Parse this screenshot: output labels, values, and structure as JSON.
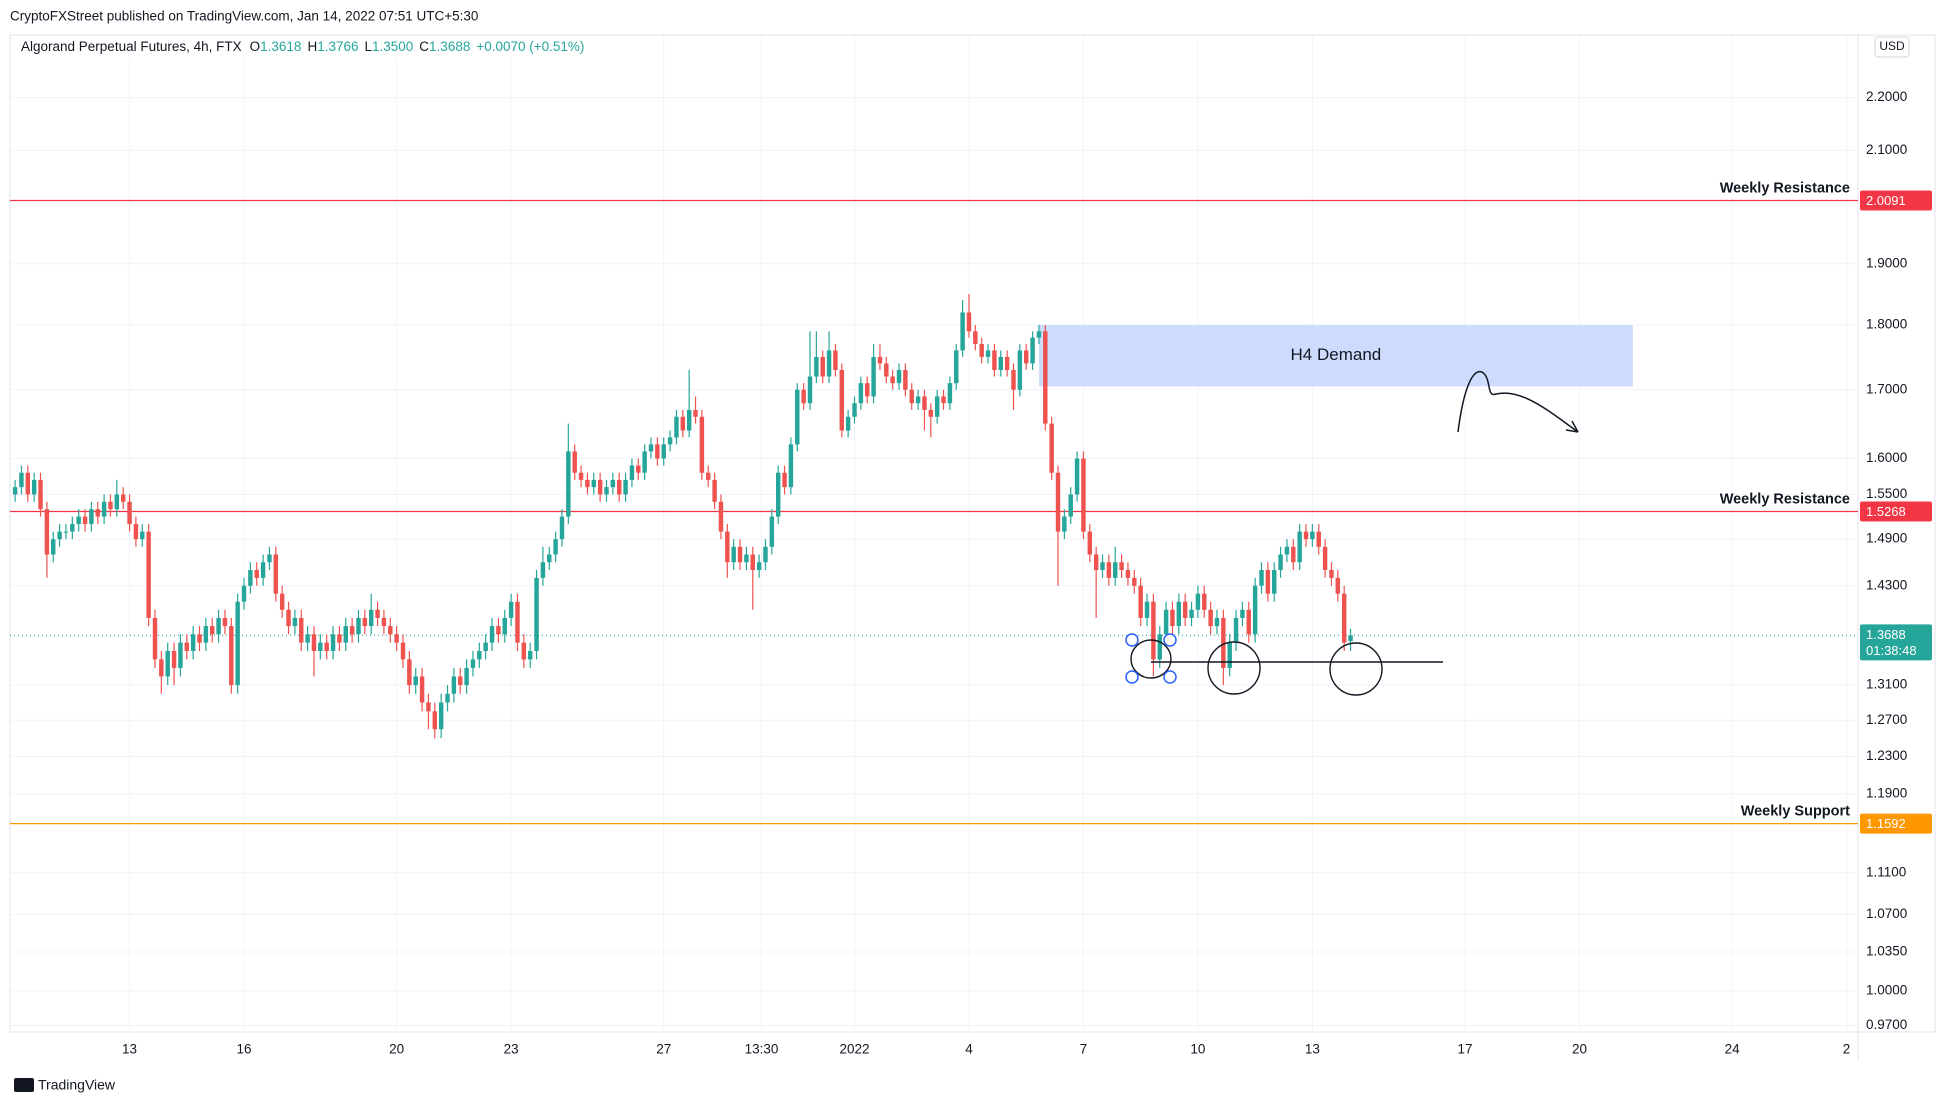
{
  "header": {
    "published": "CryptoFXStreet published on TradingView.com, Jan 14, 2022 07:51 UTC+5:30",
    "symbol": "Algorand Perpetual Futures, 4h, FTX",
    "ohlc_legend": [
      {
        "key": "O",
        "value": "1.3618"
      },
      {
        "key": "H",
        "value": "1.3766"
      },
      {
        "key": "L",
        "value": "1.3500"
      },
      {
        "key": "C",
        "value": "1.3688"
      }
    ],
    "change": "+0.0070 (+0.51%)",
    "currency": "USD"
  },
  "footer": {
    "brand": "TradingView"
  },
  "chart_data": {
    "type": "candlestick",
    "log_scale": true,
    "grid": true,
    "up_color": "#26a69a",
    "down_color": "#ef5350",
    "xlim": [
      -0.8,
      289.8
    ],
    "xticks": [
      {
        "value": 18,
        "label": "13"
      },
      {
        "value": 36,
        "label": "16"
      },
      {
        "value": 60,
        "label": "20"
      },
      {
        "value": 78,
        "label": "23"
      },
      {
        "value": 102,
        "label": "27"
      },
      {
        "value": 117.375,
        "label": "13:30"
      },
      {
        "value": 132,
        "label": "2022"
      },
      {
        "value": 150,
        "label": "4"
      },
      {
        "value": 168,
        "label": "7"
      },
      {
        "value": 186,
        "label": "10"
      },
      {
        "value": 204,
        "label": "13"
      },
      {
        "value": 228,
        "label": "17"
      },
      {
        "value": 246,
        "label": "20"
      },
      {
        "value": 270,
        "label": "24"
      },
      {
        "value": 288,
        "label": "2"
      }
    ],
    "ylim": [
      0.9645,
      2.325
    ],
    "yticks": [
      {
        "value": 2.2,
        "label": "2.2000"
      },
      {
        "value": 2.1,
        "label": "2.1000"
      },
      {
        "value": 1.9,
        "label": "1.9000"
      },
      {
        "value": 1.8,
        "label": "1.8000"
      },
      {
        "value": 1.7,
        "label": "1.7000"
      },
      {
        "value": 1.6,
        "label": "1.6000"
      },
      {
        "value": 1.55,
        "label": "1.5500"
      },
      {
        "value": 1.49,
        "label": "1.4900"
      },
      {
        "value": 1.43,
        "label": "1.4300"
      },
      {
        "value": 1.31,
        "label": "1.3100"
      },
      {
        "value": 1.27,
        "label": "1.2700"
      },
      {
        "value": 1.23,
        "label": "1.2300"
      },
      {
        "value": 1.19,
        "label": "1.1900"
      },
      {
        "value": 1.11,
        "label": "1.1100"
      },
      {
        "value": 1.07,
        "label": "1.0700"
      },
      {
        "value": 1.035,
        "label": "1.0350"
      },
      {
        "value": 1.0,
        "label": "1.0000"
      },
      {
        "value": 0.97,
        "label": "0.9700"
      }
    ],
    "levels": [
      {
        "name": "Weekly Resistance",
        "value": 2.0091,
        "color": "#f23645"
      },
      {
        "name": "Weekly Resistance",
        "value": 1.5268,
        "color": "#f23645"
      },
      {
        "name": "Weekly Support",
        "value": 1.1592,
        "color": "#ff9800"
      }
    ],
    "current_price": {
      "value": 1.3688,
      "countdown": "01:38:48",
      "color": "#26a69a"
    },
    "zones": [
      {
        "label": "H4 Demand",
        "top": 1.8,
        "bottom": 1.705,
        "x_start": 161,
        "x_end": 254.4,
        "color": "#cddcfd"
      }
    ],
    "ohlc": [
      [
        1.55,
        1.57,
        1.54,
        1.56
      ],
      [
        1.56,
        1.59,
        1.55,
        1.58
      ],
      [
        1.58,
        1.59,
        1.54,
        1.55
      ],
      [
        1.55,
        1.58,
        1.54,
        1.57
      ],
      [
        1.57,
        1.58,
        1.52,
        1.53
      ],
      [
        1.53,
        1.54,
        1.44,
        1.47
      ],
      [
        1.47,
        1.5,
        1.46,
        1.49
      ],
      [
        1.49,
        1.51,
        1.48,
        1.5
      ],
      [
        1.5,
        1.51,
        1.49,
        1.5
      ],
      [
        1.5,
        1.52,
        1.49,
        1.51
      ],
      [
        1.51,
        1.53,
        1.5,
        1.52
      ],
      [
        1.52,
        1.53,
        1.5,
        1.51
      ],
      [
        1.51,
        1.54,
        1.5,
        1.53
      ],
      [
        1.53,
        1.54,
        1.51,
        1.52
      ],
      [
        1.52,
        1.55,
        1.51,
        1.54
      ],
      [
        1.54,
        1.55,
        1.52,
        1.53
      ],
      [
        1.53,
        1.57,
        1.52,
        1.55
      ],
      [
        1.55,
        1.56,
        1.53,
        1.54
      ],
      [
        1.54,
        1.55,
        1.5,
        1.51
      ],
      [
        1.51,
        1.52,
        1.48,
        1.49
      ],
      [
        1.49,
        1.51,
        1.48,
        1.5
      ],
      [
        1.5,
        1.51,
        1.38,
        1.39
      ],
      [
        1.39,
        1.4,
        1.33,
        1.34
      ],
      [
        1.34,
        1.35,
        1.3,
        1.32
      ],
      [
        1.32,
        1.36,
        1.31,
        1.35
      ],
      [
        1.35,
        1.36,
        1.31,
        1.33
      ],
      [
        1.33,
        1.37,
        1.32,
        1.36
      ],
      [
        1.36,
        1.37,
        1.34,
        1.35
      ],
      [
        1.35,
        1.38,
        1.34,
        1.37
      ],
      [
        1.37,
        1.38,
        1.35,
        1.36
      ],
      [
        1.36,
        1.39,
        1.35,
        1.38
      ],
      [
        1.38,
        1.39,
        1.36,
        1.37
      ],
      [
        1.37,
        1.4,
        1.36,
        1.39
      ],
      [
        1.39,
        1.4,
        1.37,
        1.38
      ],
      [
        1.38,
        1.39,
        1.3,
        1.31
      ],
      [
        1.31,
        1.42,
        1.3,
        1.41
      ],
      [
        1.41,
        1.44,
        1.4,
        1.43
      ],
      [
        1.43,
        1.46,
        1.42,
        1.45
      ],
      [
        1.45,
        1.46,
        1.43,
        1.44
      ],
      [
        1.44,
        1.47,
        1.43,
        1.46
      ],
      [
        1.46,
        1.48,
        1.45,
        1.47
      ],
      [
        1.47,
        1.48,
        1.41,
        1.42
      ],
      [
        1.42,
        1.43,
        1.39,
        1.4
      ],
      [
        1.4,
        1.41,
        1.37,
        1.38
      ],
      [
        1.38,
        1.4,
        1.37,
        1.39
      ],
      [
        1.39,
        1.4,
        1.35,
        1.36
      ],
      [
        1.36,
        1.38,
        1.35,
        1.37
      ],
      [
        1.37,
        1.38,
        1.32,
        1.35
      ],
      [
        1.35,
        1.37,
        1.34,
        1.36
      ],
      [
        1.36,
        1.37,
        1.34,
        1.35
      ],
      [
        1.35,
        1.38,
        1.34,
        1.37
      ],
      [
        1.37,
        1.38,
        1.35,
        1.36
      ],
      [
        1.36,
        1.39,
        1.35,
        1.38
      ],
      [
        1.38,
        1.39,
        1.36,
        1.37
      ],
      [
        1.37,
        1.4,
        1.36,
        1.39
      ],
      [
        1.39,
        1.4,
        1.37,
        1.38
      ],
      [
        1.38,
        1.42,
        1.37,
        1.4
      ],
      [
        1.4,
        1.41,
        1.38,
        1.39
      ],
      [
        1.39,
        1.4,
        1.37,
        1.38
      ],
      [
        1.38,
        1.39,
        1.36,
        1.37
      ],
      [
        1.37,
        1.38,
        1.35,
        1.36
      ],
      [
        1.36,
        1.37,
        1.33,
        1.34
      ],
      [
        1.34,
        1.35,
        1.3,
        1.31
      ],
      [
        1.31,
        1.33,
        1.3,
        1.32
      ],
      [
        1.32,
        1.33,
        1.28,
        1.29
      ],
      [
        1.29,
        1.3,
        1.26,
        1.28
      ],
      [
        1.28,
        1.29,
        1.25,
        1.26
      ],
      [
        1.26,
        1.3,
        1.25,
        1.29
      ],
      [
        1.29,
        1.31,
        1.28,
        1.3
      ],
      [
        1.3,
        1.33,
        1.29,
        1.32
      ],
      [
        1.32,
        1.33,
        1.3,
        1.31
      ],
      [
        1.31,
        1.34,
        1.3,
        1.33
      ],
      [
        1.33,
        1.35,
        1.32,
        1.34
      ],
      [
        1.34,
        1.36,
        1.33,
        1.35
      ],
      [
        1.35,
        1.37,
        1.34,
        1.36
      ],
      [
        1.36,
        1.39,
        1.35,
        1.38
      ],
      [
        1.38,
        1.39,
        1.36,
        1.37
      ],
      [
        1.37,
        1.4,
        1.36,
        1.39
      ],
      [
        1.39,
        1.42,
        1.38,
        1.41
      ],
      [
        1.41,
        1.42,
        1.35,
        1.36
      ],
      [
        1.36,
        1.37,
        1.33,
        1.34
      ],
      [
        1.34,
        1.36,
        1.33,
        1.35
      ],
      [
        1.35,
        1.45,
        1.34,
        1.44
      ],
      [
        1.44,
        1.48,
        1.43,
        1.46
      ],
      [
        1.46,
        1.48,
        1.45,
        1.47
      ],
      [
        1.47,
        1.5,
        1.46,
        1.49
      ],
      [
        1.49,
        1.53,
        1.48,
        1.52
      ],
      [
        1.52,
        1.65,
        1.51,
        1.61
      ],
      [
        1.61,
        1.62,
        1.57,
        1.58
      ],
      [
        1.58,
        1.59,
        1.56,
        1.57
      ],
      [
        1.57,
        1.58,
        1.55,
        1.56
      ],
      [
        1.56,
        1.58,
        1.55,
        1.57
      ],
      [
        1.57,
        1.58,
        1.54,
        1.55
      ],
      [
        1.55,
        1.57,
        1.54,
        1.56
      ],
      [
        1.56,
        1.58,
        1.55,
        1.57
      ],
      [
        1.57,
        1.58,
        1.54,
        1.55
      ],
      [
        1.55,
        1.58,
        1.54,
        1.57
      ],
      [
        1.57,
        1.6,
        1.56,
        1.59
      ],
      [
        1.59,
        1.6,
        1.57,
        1.58
      ],
      [
        1.58,
        1.62,
        1.57,
        1.61
      ],
      [
        1.61,
        1.63,
        1.6,
        1.62
      ],
      [
        1.62,
        1.63,
        1.59,
        1.6
      ],
      [
        1.6,
        1.63,
        1.59,
        1.62
      ],
      [
        1.62,
        1.64,
        1.61,
        1.63
      ],
      [
        1.63,
        1.67,
        1.62,
        1.66
      ],
      [
        1.66,
        1.67,
        1.63,
        1.64
      ],
      [
        1.64,
        1.73,
        1.63,
        1.67
      ],
      [
        1.67,
        1.69,
        1.65,
        1.66
      ],
      [
        1.66,
        1.67,
        1.57,
        1.58
      ],
      [
        1.58,
        1.59,
        1.56,
        1.57
      ],
      [
        1.57,
        1.58,
        1.53,
        1.54
      ],
      [
        1.54,
        1.55,
        1.49,
        1.5
      ],
      [
        1.5,
        1.51,
        1.44,
        1.46
      ],
      [
        1.46,
        1.49,
        1.45,
        1.48
      ],
      [
        1.48,
        1.49,
        1.45,
        1.46
      ],
      [
        1.46,
        1.48,
        1.45,
        1.47
      ],
      [
        1.47,
        1.48,
        1.4,
        1.45
      ],
      [
        1.45,
        1.47,
        1.44,
        1.46
      ],
      [
        1.46,
        1.49,
        1.45,
        1.48
      ],
      [
        1.48,
        1.53,
        1.47,
        1.52
      ],
      [
        1.52,
        1.59,
        1.51,
        1.58
      ],
      [
        1.58,
        1.59,
        1.55,
        1.56
      ],
      [
        1.56,
        1.63,
        1.55,
        1.62
      ],
      [
        1.62,
        1.71,
        1.61,
        1.7
      ],
      [
        1.7,
        1.71,
        1.67,
        1.68
      ],
      [
        1.68,
        1.79,
        1.67,
        1.72
      ],
      [
        1.72,
        1.79,
        1.71,
        1.75
      ],
      [
        1.75,
        1.76,
        1.71,
        1.72
      ],
      [
        1.72,
        1.79,
        1.71,
        1.76
      ],
      [
        1.76,
        1.77,
        1.72,
        1.73
      ],
      [
        1.73,
        1.74,
        1.63,
        1.64
      ],
      [
        1.64,
        1.67,
        1.63,
        1.66
      ],
      [
        1.66,
        1.69,
        1.65,
        1.68
      ],
      [
        1.68,
        1.72,
        1.67,
        1.71
      ],
      [
        1.71,
        1.72,
        1.68,
        1.69
      ],
      [
        1.69,
        1.77,
        1.68,
        1.75
      ],
      [
        1.75,
        1.77,
        1.73,
        1.74
      ],
      [
        1.74,
        1.75,
        1.71,
        1.72
      ],
      [
        1.72,
        1.73,
        1.7,
        1.71
      ],
      [
        1.71,
        1.74,
        1.7,
        1.73
      ],
      [
        1.73,
        1.74,
        1.69,
        1.7
      ],
      [
        1.7,
        1.71,
        1.67,
        1.68
      ],
      [
        1.68,
        1.7,
        1.67,
        1.69
      ],
      [
        1.69,
        1.7,
        1.64,
        1.67
      ],
      [
        1.67,
        1.68,
        1.63,
        1.66
      ],
      [
        1.66,
        1.7,
        1.65,
        1.69
      ],
      [
        1.69,
        1.7,
        1.67,
        1.68
      ],
      [
        1.68,
        1.72,
        1.67,
        1.71
      ],
      [
        1.71,
        1.77,
        1.7,
        1.76
      ],
      [
        1.76,
        1.84,
        1.75,
        1.82
      ],
      [
        1.82,
        1.85,
        1.78,
        1.79
      ],
      [
        1.79,
        1.8,
        1.76,
        1.77
      ],
      [
        1.77,
        1.78,
        1.74,
        1.75
      ],
      [
        1.75,
        1.77,
        1.74,
        1.76
      ],
      [
        1.76,
        1.77,
        1.72,
        1.73
      ],
      [
        1.73,
        1.76,
        1.72,
        1.75
      ],
      [
        1.75,
        1.76,
        1.72,
        1.73
      ],
      [
        1.73,
        1.74,
        1.67,
        1.7
      ],
      [
        1.7,
        1.77,
        1.69,
        1.76
      ],
      [
        1.76,
        1.77,
        1.73,
        1.74
      ],
      [
        1.74,
        1.79,
        1.73,
        1.78
      ],
      [
        1.78,
        1.8,
        1.77,
        1.79
      ],
      [
        1.79,
        1.8,
        1.64,
        1.65
      ],
      [
        1.65,
        1.66,
        1.57,
        1.58
      ],
      [
        1.58,
        1.59,
        1.43,
        1.5
      ],
      [
        1.5,
        1.53,
        1.49,
        1.52
      ],
      [
        1.52,
        1.56,
        1.51,
        1.55
      ],
      [
        1.55,
        1.61,
        1.54,
        1.6
      ],
      [
        1.6,
        1.61,
        1.49,
        1.5
      ],
      [
        1.5,
        1.51,
        1.46,
        1.47
      ],
      [
        1.47,
        1.48,
        1.39,
        1.45
      ],
      [
        1.45,
        1.47,
        1.44,
        1.46
      ],
      [
        1.46,
        1.47,
        1.43,
        1.44
      ],
      [
        1.44,
        1.48,
        1.43,
        1.46
      ],
      [
        1.46,
        1.47,
        1.44,
        1.45
      ],
      [
        1.45,
        1.46,
        1.43,
        1.44
      ],
      [
        1.44,
        1.45,
        1.42,
        1.43
      ],
      [
        1.43,
        1.44,
        1.38,
        1.39
      ],
      [
        1.39,
        1.42,
        1.38,
        1.41
      ],
      [
        1.41,
        1.42,
        1.32,
        1.34
      ],
      [
        1.34,
        1.38,
        1.33,
        1.37
      ],
      [
        1.37,
        1.41,
        1.36,
        1.4
      ],
      [
        1.4,
        1.41,
        1.37,
        1.38
      ],
      [
        1.38,
        1.42,
        1.37,
        1.41
      ],
      [
        1.41,
        1.42,
        1.38,
        1.39
      ],
      [
        1.39,
        1.41,
        1.38,
        1.4
      ],
      [
        1.4,
        1.43,
        1.39,
        1.42
      ],
      [
        1.42,
        1.43,
        1.39,
        1.4
      ],
      [
        1.4,
        1.41,
        1.37,
        1.38
      ],
      [
        1.38,
        1.4,
        1.37,
        1.39
      ],
      [
        1.39,
        1.4,
        1.31,
        1.33
      ],
      [
        1.33,
        1.37,
        1.32,
        1.36
      ],
      [
        1.36,
        1.4,
        1.35,
        1.39
      ],
      [
        1.39,
        1.41,
        1.38,
        1.4
      ],
      [
        1.4,
        1.41,
        1.36,
        1.37
      ],
      [
        1.37,
        1.44,
        1.36,
        1.43
      ],
      [
        1.43,
        1.46,
        1.42,
        1.45
      ],
      [
        1.45,
        1.46,
        1.41,
        1.42
      ],
      [
        1.42,
        1.46,
        1.41,
        1.45
      ],
      [
        1.45,
        1.48,
        1.44,
        1.47
      ],
      [
        1.47,
        1.49,
        1.46,
        1.48
      ],
      [
        1.48,
        1.49,
        1.45,
        1.46
      ],
      [
        1.46,
        1.51,
        1.45,
        1.5
      ],
      [
        1.5,
        1.51,
        1.48,
        1.49
      ],
      [
        1.49,
        1.51,
        1.48,
        1.5
      ],
      [
        1.5,
        1.51,
        1.47,
        1.48
      ],
      [
        1.48,
        1.49,
        1.44,
        1.45
      ],
      [
        1.45,
        1.46,
        1.43,
        1.44
      ],
      [
        1.44,
        1.45,
        1.41,
        1.42
      ],
      [
        1.42,
        1.43,
        1.35,
        1.36
      ],
      [
        1.3618,
        1.3766,
        1.35,
        1.3688
      ]
    ]
  }
}
